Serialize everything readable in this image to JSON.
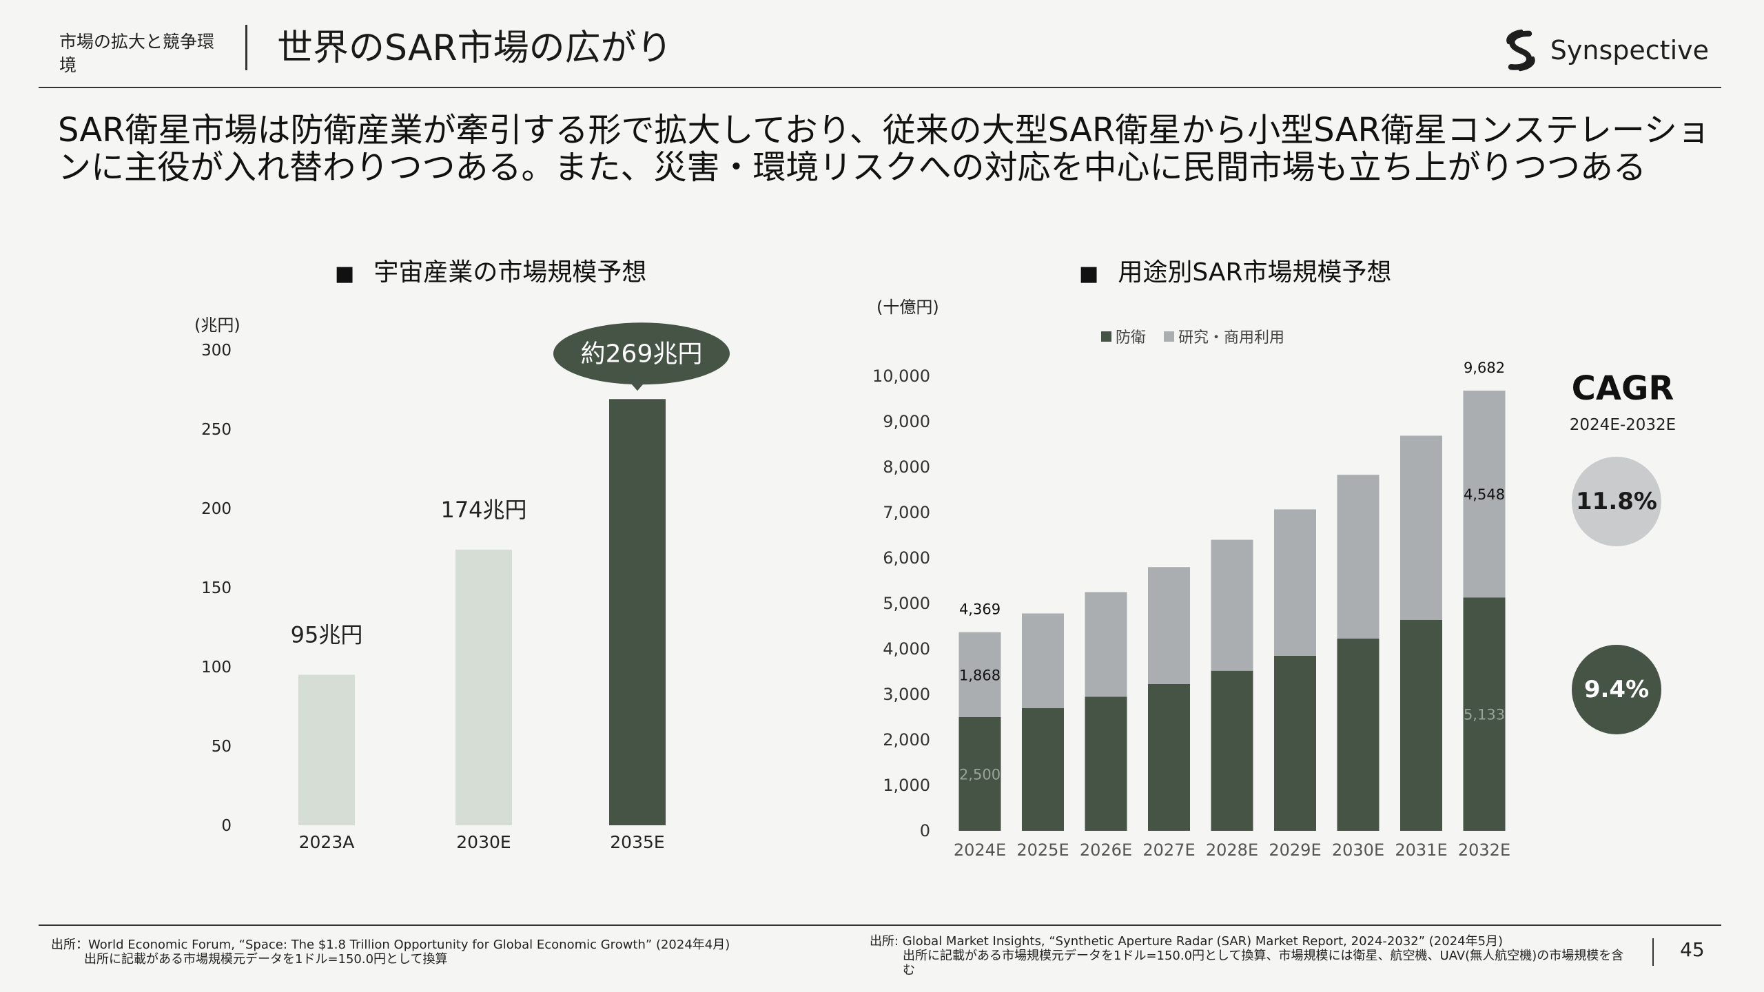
{
  "header": {
    "section": "市場の拡大と競争環境",
    "title": "世界のSAR市場の広がり",
    "logo_text": "Synspective"
  },
  "headline": "SAR衛星市場は防衛産業が牽引する形で拡大しており、従来の大型SAR衛星から小型SAR衛星コンステレーションに主役が入れ替わりつつある。また、災害・環境リスクへの対応を中心に民間市場も立ち上がりつつある",
  "left_panel": {
    "bullet": "■",
    "title": "宇宙産業の市場規模予想",
    "unit": "(兆円)"
  },
  "right_panel": {
    "bullet": "■",
    "title": "用途別SAR市場規模予想",
    "unit": "(十億円)",
    "legend": [
      {
        "label": "防衛",
        "color": "#465446"
      },
      {
        "label": "研究・商用利用",
        "color": "#abaeb1"
      }
    ]
  },
  "cagr": {
    "title": "CAGR",
    "range": "2024E-2032E",
    "research_value": "11.8%",
    "defense_value": "9.4%"
  },
  "chart_data": [
    {
      "type": "bar",
      "title": "宇宙産業の市場規模予想",
      "ylabel": "(兆円)",
      "categories": [
        "2023A",
        "2030E",
        "2035E"
      ],
      "values": [
        95,
        174,
        269
      ],
      "data_labels": [
        "95兆円",
        "174兆円",
        "約269兆円"
      ],
      "bar_colors": [
        "#d5ddd5",
        "#d5ddd5",
        "#465446"
      ],
      "ylim": [
        0,
        300
      ],
      "yticks": [
        0,
        50,
        100,
        150,
        200,
        250,
        300
      ],
      "grid": false
    },
    {
      "type": "bar",
      "stacked": true,
      "title": "用途別SAR市場規模予想",
      "ylabel": "(十億円)",
      "categories": [
        "2024E",
        "2025E",
        "2026E",
        "2027E",
        "2028E",
        "2029E",
        "2030E",
        "2031E",
        "2032E"
      ],
      "series": [
        {
          "name": "防衛",
          "color": "#465446",
          "values": [
            2500,
            2700,
            2950,
            3230,
            3520,
            3850,
            4230,
            4640,
            5133
          ]
        },
        {
          "name": "研究・商用利用",
          "color": "#abaeb1",
          "values": [
            1868,
            2080,
            2300,
            2570,
            2880,
            3220,
            3600,
            4050,
            4548
          ]
        }
      ],
      "totals_labels": {
        "2024E": "4,369",
        "2032E": "9,682"
      },
      "segment_labels": {
        "2024E": [
          "2,500",
          "1,868"
        ],
        "2032E": [
          "5,133",
          "4,548"
        ]
      },
      "ylim": [
        0,
        10000
      ],
      "yticks": [
        "0",
        "1,000",
        "2,000",
        "3,000",
        "4,000",
        "5,000",
        "6,000",
        "7,000",
        "8,000",
        "9,000",
        "10,000"
      ],
      "legend_position": "top-left",
      "grid": false
    }
  ],
  "sources": {
    "left_line1": "出所：World Economic Forum, “Space: The $1.8 Trillion Opportunity for Global Economic Growth” (2024年4月)",
    "left_line2": "出所に記載がある市場規模元データを1ドル=150.0円として換算",
    "right_line1": "出所: Global Market Insights, “Synthetic Aperture Radar (SAR) Market Report, 2024-2032” (2024年5月)",
    "right_line2": "出所に記載がある市場規模元データを1ドル=150.0円として換算、市場規模には衛星、航空機、UAV(無人航空機)の市場規模を含む"
  },
  "page_number": "45"
}
